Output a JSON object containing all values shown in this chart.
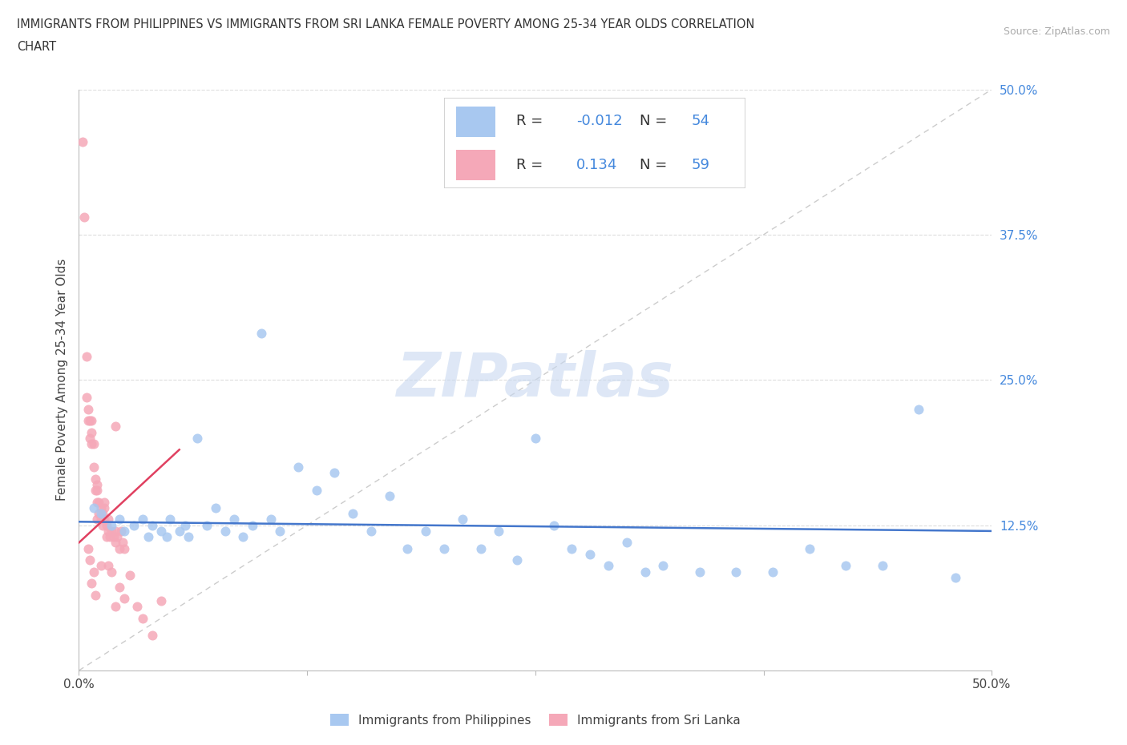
{
  "title_line1": "IMMIGRANTS FROM PHILIPPINES VS IMMIGRANTS FROM SRI LANKA FEMALE POVERTY AMONG 25-34 YEAR OLDS CORRELATION",
  "title_line2": "CHART",
  "source": "Source: ZipAtlas.com",
  "ylabel": "Female Poverty Among 25-34 Year Olds",
  "xlim": [
    0.0,
    0.5
  ],
  "ylim": [
    0.0,
    0.5
  ],
  "philippines_color": "#a8c8f0",
  "srilanka_color": "#f5a8b8",
  "philippines_line_color": "#4477cc",
  "srilanka_line_color": "#e04060",
  "diagonal_color": "#cccccc",
  "grid_color": "#dddddd",
  "watermark": "ZIPatlas",
  "watermark_color": "#c8d8f0",
  "legend_philippines_label": "Immigrants from Philippines",
  "legend_srilanka_label": "Immigrants from Sri Lanka",
  "tick_label_color": "#4488dd",
  "r_value_color": "#4488dd",
  "n_value_color": "#4488dd",
  "label_color": "#444444",
  "phil_R": -0.012,
  "phil_N": 54,
  "sl_R": 0.134,
  "sl_N": 59,
  "phil_x": [
    0.008,
    0.012,
    0.018,
    0.022,
    0.025,
    0.03,
    0.035,
    0.038,
    0.04,
    0.045,
    0.048,
    0.05,
    0.055,
    0.058,
    0.06,
    0.065,
    0.07,
    0.075,
    0.08,
    0.085,
    0.09,
    0.095,
    0.1,
    0.105,
    0.11,
    0.12,
    0.13,
    0.14,
    0.15,
    0.16,
    0.17,
    0.18,
    0.19,
    0.2,
    0.21,
    0.22,
    0.23,
    0.24,
    0.25,
    0.26,
    0.27,
    0.28,
    0.29,
    0.3,
    0.31,
    0.32,
    0.34,
    0.36,
    0.38,
    0.4,
    0.42,
    0.44,
    0.46,
    0.48
  ],
  "phil_y": [
    0.14,
    0.135,
    0.125,
    0.13,
    0.12,
    0.125,
    0.13,
    0.115,
    0.125,
    0.12,
    0.115,
    0.13,
    0.12,
    0.125,
    0.115,
    0.2,
    0.125,
    0.14,
    0.12,
    0.13,
    0.115,
    0.125,
    0.29,
    0.13,
    0.12,
    0.175,
    0.155,
    0.17,
    0.135,
    0.12,
    0.15,
    0.105,
    0.12,
    0.105,
    0.13,
    0.105,
    0.12,
    0.095,
    0.2,
    0.125,
    0.105,
    0.1,
    0.09,
    0.11,
    0.085,
    0.09,
    0.085,
    0.085,
    0.085,
    0.105,
    0.09,
    0.09,
    0.225,
    0.08
  ],
  "sl_x": [
    0.002,
    0.003,
    0.004,
    0.004,
    0.005,
    0.005,
    0.006,
    0.006,
    0.007,
    0.007,
    0.007,
    0.008,
    0.008,
    0.009,
    0.009,
    0.01,
    0.01,
    0.01,
    0.011,
    0.011,
    0.012,
    0.012,
    0.013,
    0.013,
    0.014,
    0.014,
    0.015,
    0.015,
    0.016,
    0.016,
    0.017,
    0.018,
    0.019,
    0.02,
    0.02,
    0.021,
    0.022,
    0.023,
    0.024,
    0.025,
    0.005,
    0.006,
    0.007,
    0.008,
    0.009,
    0.01,
    0.012,
    0.014,
    0.016,
    0.018,
    0.02,
    0.022,
    0.025,
    0.028,
    0.032,
    0.035,
    0.04,
    0.02,
    0.045
  ],
  "sl_y": [
    0.455,
    0.39,
    0.27,
    0.235,
    0.225,
    0.215,
    0.215,
    0.2,
    0.215,
    0.195,
    0.205,
    0.195,
    0.175,
    0.165,
    0.155,
    0.16,
    0.145,
    0.155,
    0.145,
    0.135,
    0.14,
    0.13,
    0.135,
    0.125,
    0.14,
    0.13,
    0.125,
    0.115,
    0.13,
    0.12,
    0.115,
    0.12,
    0.115,
    0.12,
    0.11,
    0.115,
    0.105,
    0.12,
    0.11,
    0.105,
    0.105,
    0.095,
    0.075,
    0.085,
    0.065,
    0.13,
    0.09,
    0.145,
    0.09,
    0.085,
    0.055,
    0.072,
    0.062,
    0.082,
    0.055,
    0.045,
    0.03,
    0.21,
    0.06
  ]
}
